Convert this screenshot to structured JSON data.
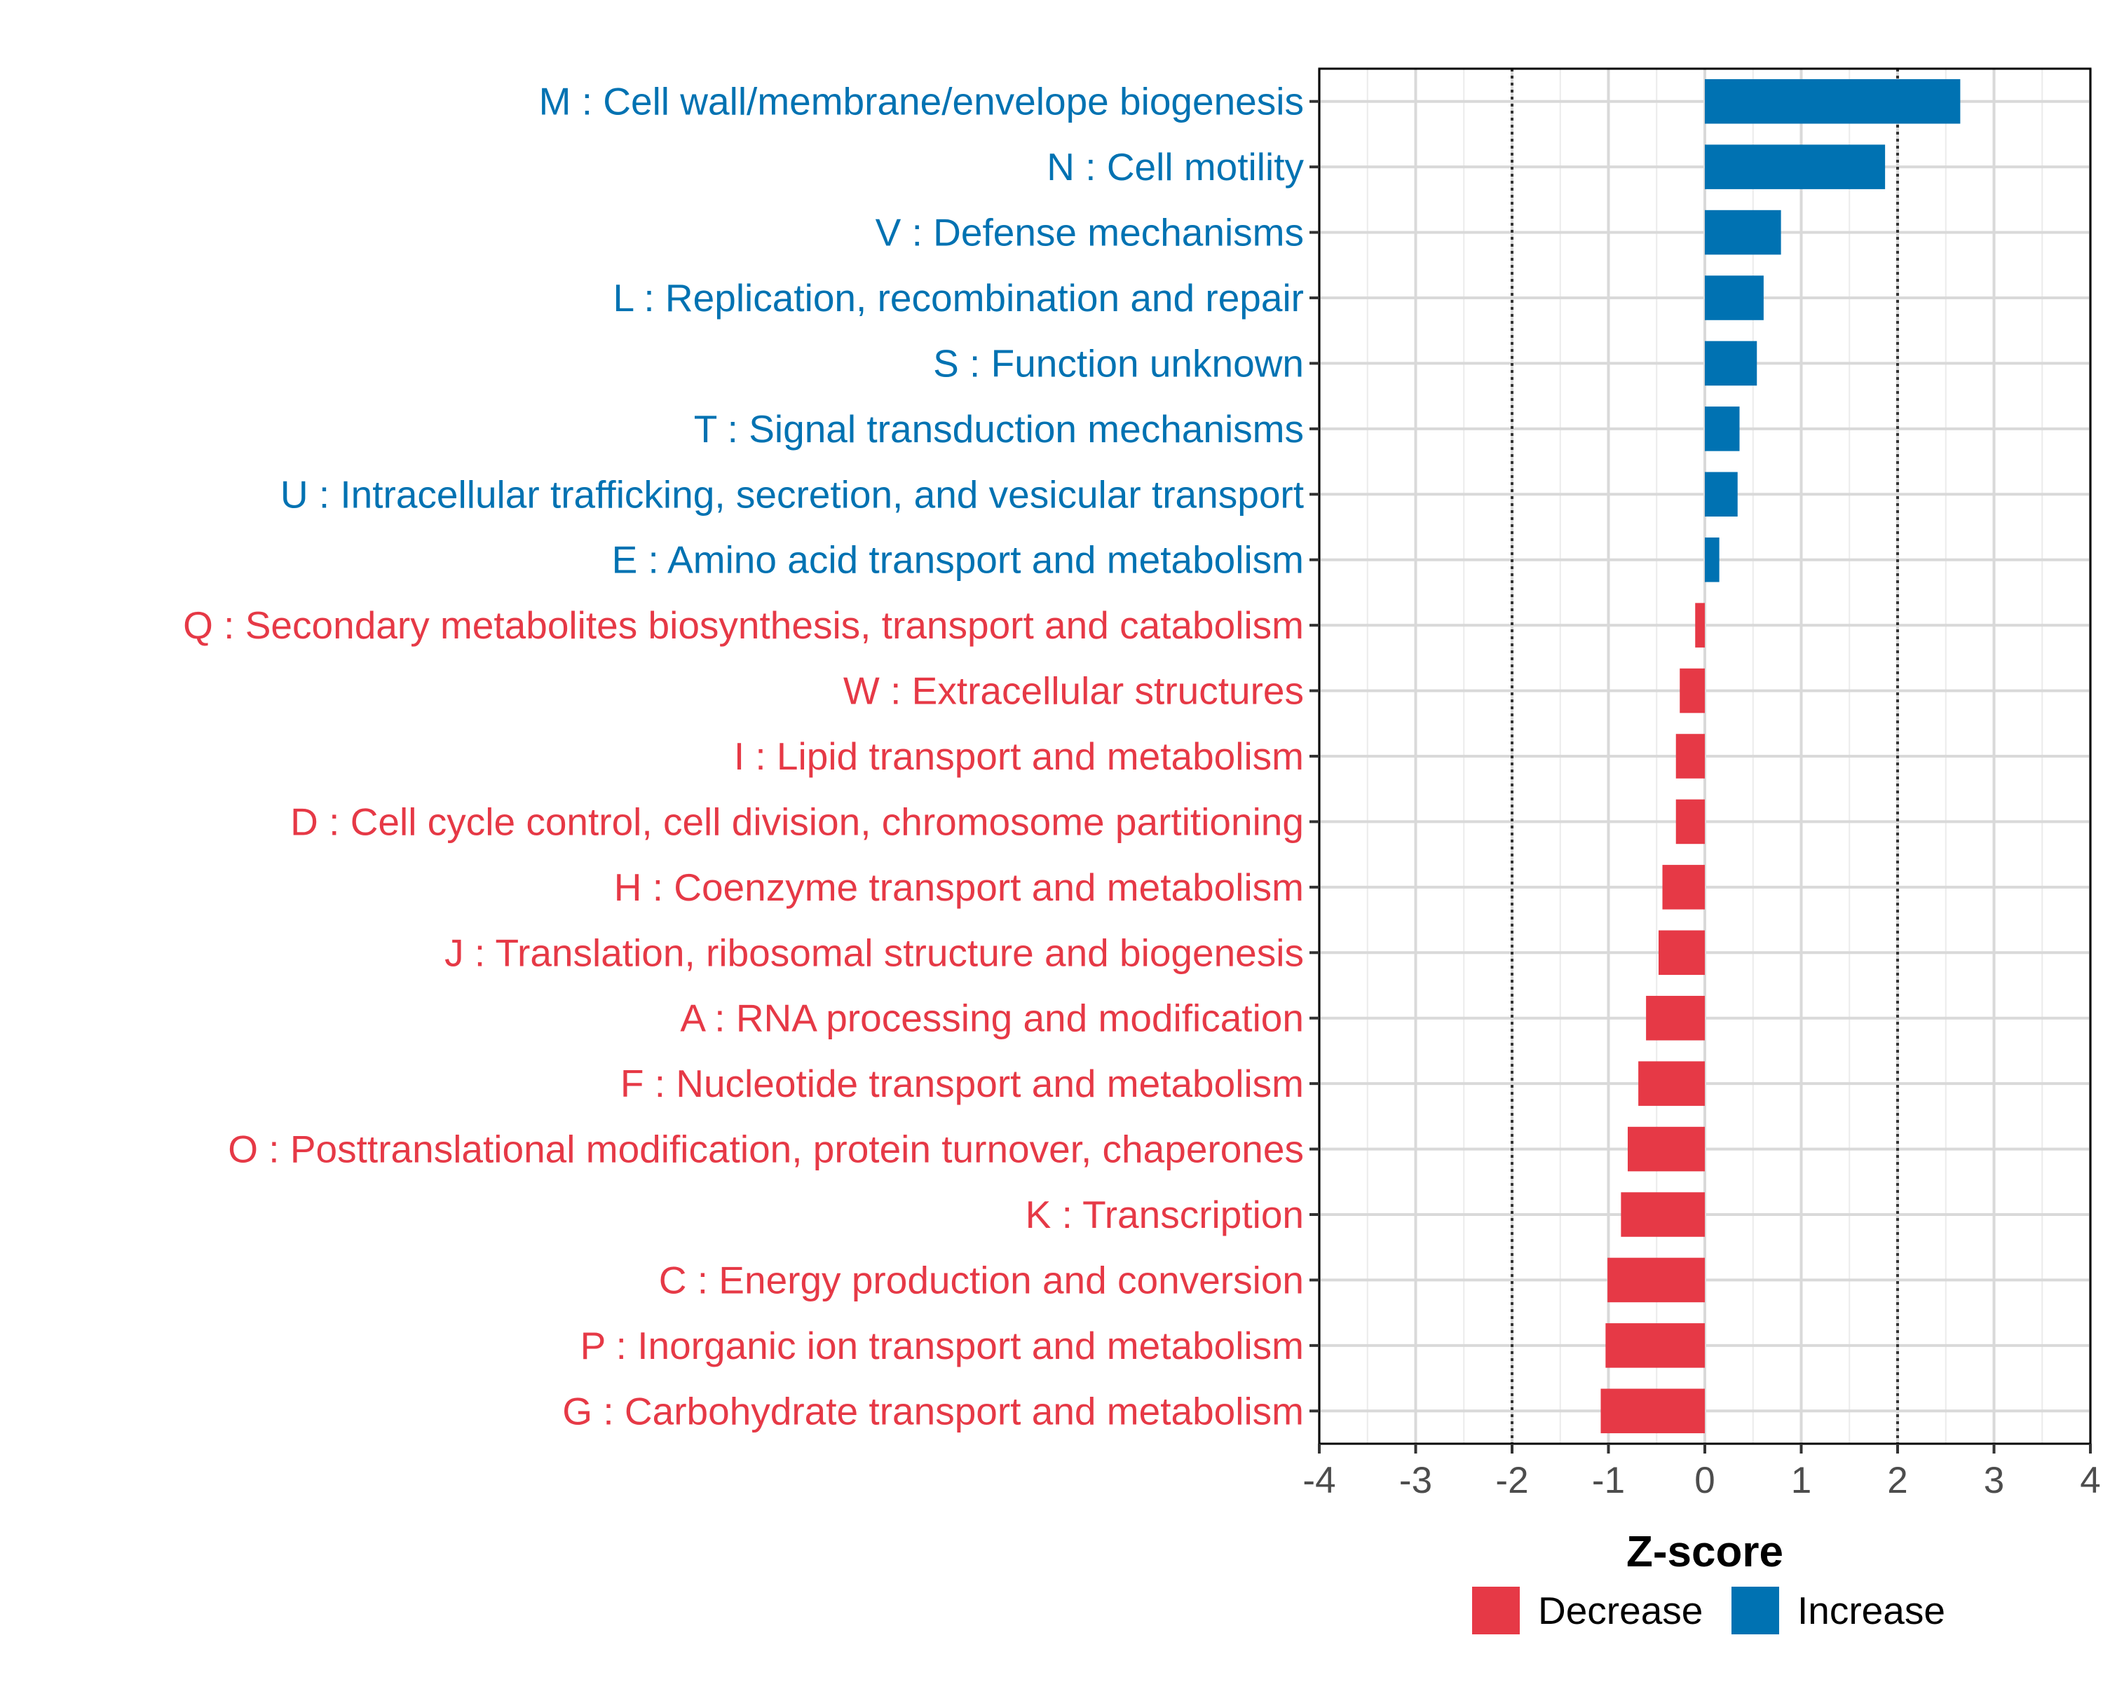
{
  "chart_data": {
    "type": "bar",
    "orientation": "horizontal",
    "xlabel": "Z-score",
    "xlim": [
      -4,
      4
    ],
    "xticks": [
      "-4",
      "-3",
      "-2",
      "-1",
      "0",
      "1",
      "2",
      "3",
      "4"
    ],
    "threshold_lines": [
      -2,
      2
    ],
    "grid": true,
    "colors": {
      "Increase": "#0072b2",
      "Decrease": "#e63946"
    },
    "legend": {
      "position": "bottom",
      "items": [
        {
          "label": "Decrease",
          "color": "#e63946"
        },
        {
          "label": "Increase",
          "color": "#0072b2"
        }
      ]
    },
    "categories": [
      "M : Cell wall/membrane/envelope biogenesis",
      "N : Cell motility",
      "V : Defense mechanisms",
      "L : Replication, recombination and repair",
      "S : Function unknown",
      "T : Signal transduction mechanisms",
      "U : Intracellular trafficking, secretion, and vesicular transport",
      "E : Amino acid transport and metabolism",
      "Q : Secondary metabolites biosynthesis, transport and catabolism",
      "W : Extracellular structures",
      "I : Lipid transport and metabolism",
      "D : Cell cycle control, cell division, chromosome partitioning",
      "H : Coenzyme transport and metabolism",
      "J : Translation, ribosomal structure and biogenesis",
      "A : RNA processing and modification",
      "F : Nucleotide transport and metabolism",
      "O : Posttranslational modification, protein turnover, chaperones",
      "K : Transcription",
      "C : Energy production and conversion",
      "P : Inorganic ion transport and metabolism",
      "G : Carbohydrate transport and metabolism"
    ],
    "values": [
      2.65,
      1.87,
      0.79,
      0.61,
      0.54,
      0.36,
      0.34,
      0.15,
      -0.1,
      -0.26,
      -0.3,
      -0.3,
      -0.44,
      -0.48,
      -0.61,
      -0.69,
      -0.8,
      -0.87,
      -1.01,
      -1.03,
      -1.08
    ],
    "groups": [
      "Increase",
      "Increase",
      "Increase",
      "Increase",
      "Increase",
      "Increase",
      "Increase",
      "Increase",
      "Decrease",
      "Decrease",
      "Decrease",
      "Decrease",
      "Decrease",
      "Decrease",
      "Decrease",
      "Decrease",
      "Decrease",
      "Decrease",
      "Decrease",
      "Decrease",
      "Decrease"
    ]
  }
}
